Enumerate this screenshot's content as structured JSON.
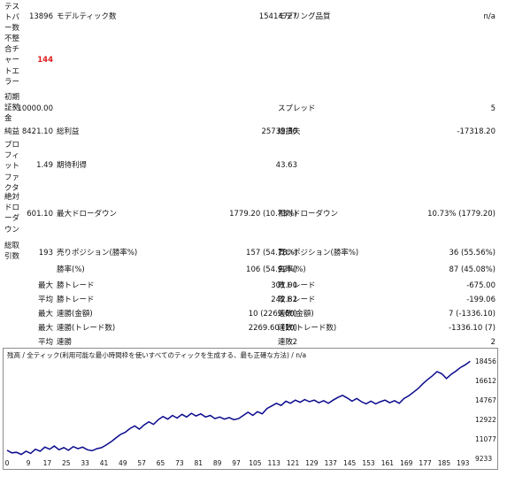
{
  "stats": {
    "test_bars": {
      "label": "テストバー数",
      "value": "13896"
    },
    "model_ticks": {
      "label": "モデルティック数",
      "value": "15414727"
    },
    "model_quality": {
      "label": "モデリング品質",
      "value": "n/a"
    },
    "mismatch_errors": {
      "label": "不整合チャートエラー",
      "value": "144"
    },
    "initial_deposit": {
      "label": "初期証拠金",
      "value": "10000.00"
    },
    "spread": {
      "label": "スプレッド",
      "value": "5"
    },
    "net_profit": {
      "label": "純益",
      "value": "8421.10"
    },
    "gross_profit": {
      "label": "総利益",
      "value": "25739.30"
    },
    "gross_loss": {
      "label": "総損失",
      "value": "-17318.20"
    },
    "profit_factor": {
      "label": "プロフィットファクタ",
      "value": "1.49"
    },
    "expected_payoff": {
      "label": "期待利得",
      "value": "43.63"
    },
    "absolute_drawdown": {
      "label": "絶対ドローダウン",
      "value": "601.10"
    },
    "maximal_drawdown": {
      "label": "最大ドローダウン",
      "value": "1779.20 (10.73%)"
    },
    "relative_drawdown": {
      "label": "相対ドローダウン",
      "value": "10.73% (1779.20)"
    },
    "total_trades": {
      "label": "総取引数",
      "value": "193"
    },
    "short_positions": {
      "label": "売りポジション(勝率%)",
      "value": "157 (54.78%)"
    },
    "long_positions": {
      "label": "買いポジション(勝率%)",
      "value": "36 (55.56%)"
    },
    "win_rate": {
      "label": "勝率(%)",
      "value": "106 (54.92%)"
    },
    "loss_rate": {
      "label": "負率(%)",
      "value": "87 (45.08%)"
    },
    "largest": {
      "prefix": "最大",
      "win_label": "勝トレード",
      "win_value": "301.00",
      "loss_label": "敗トレード",
      "loss_value": "-675.00"
    },
    "average": {
      "prefix": "平均",
      "win_label": "勝トレード",
      "win_value": "242.82",
      "loss_label": "敗トレード",
      "loss_value": "-199.06"
    },
    "max_consec_money": {
      "prefix": "最大",
      "win_label": "連勝(金額)",
      "win_value": "10 (2269.60)",
      "loss_label": "連敗(金額)",
      "loss_value": "7 (-1336.10)"
    },
    "max_consec_trades": {
      "prefix": "最大",
      "win_label": "連勝(トレード数)",
      "win_value": "2269.60 (10)",
      "loss_label": "連敗(トレード数)",
      "loss_value": "-1336.10 (7)"
    },
    "avg_consec": {
      "prefix": "平均",
      "win_label": "連勝",
      "win_value": "2",
      "loss_label": "連敗",
      "loss_value": "2"
    }
  },
  "chart_data": {
    "type": "line",
    "title": "残高 / 全ティック(利用可能な最小時間枠を使いすべてのティックを生成する、最も正確な方法) / n/a",
    "x_ticks": [
      0,
      9,
      17,
      25,
      33,
      41,
      49,
      57,
      65,
      73,
      81,
      89,
      97,
      105,
      113,
      121,
      129,
      137,
      145,
      153,
      161,
      169,
      177,
      185,
      193
    ],
    "y_ticks": [
      18456,
      16612,
      14767,
      12922,
      11077,
      9233
    ],
    "ylim": [
      9233,
      18456
    ],
    "xlim": [
      0,
      197
    ],
    "line_color": "#0a0a8c",
    "points": [
      [
        0,
        10000
      ],
      [
        2,
        9750
      ],
      [
        4,
        9800
      ],
      [
        6,
        9600
      ],
      [
        8,
        9900
      ],
      [
        10,
        9700
      ],
      [
        12,
        10100
      ],
      [
        14,
        9900
      ],
      [
        16,
        10300
      ],
      [
        18,
        10100
      ],
      [
        20,
        10400
      ],
      [
        22,
        10050
      ],
      [
        24,
        10250
      ],
      [
        26,
        10000
      ],
      [
        28,
        10350
      ],
      [
        30,
        10150
      ],
      [
        32,
        10300
      ],
      [
        34,
        10050
      ],
      [
        36,
        9950
      ],
      [
        38,
        10150
      ],
      [
        40,
        10250
      ],
      [
        42,
        10500
      ],
      [
        44,
        10800
      ],
      [
        46,
        11150
      ],
      [
        48,
        11500
      ],
      [
        50,
        11700
      ],
      [
        52,
        12050
      ],
      [
        54,
        12300
      ],
      [
        56,
        12000
      ],
      [
        58,
        12400
      ],
      [
        60,
        12700
      ],
      [
        62,
        12450
      ],
      [
        64,
        12900
      ],
      [
        66,
        13200
      ],
      [
        68,
        12950
      ],
      [
        70,
        13300
      ],
      [
        72,
        13050
      ],
      [
        74,
        13400
      ],
      [
        76,
        13150
      ],
      [
        78,
        13500
      ],
      [
        80,
        13250
      ],
      [
        82,
        13450
      ],
      [
        84,
        13150
      ],
      [
        86,
        13300
      ],
      [
        88,
        13000
      ],
      [
        90,
        13150
      ],
      [
        92,
        12950
      ],
      [
        94,
        13100
      ],
      [
        96,
        12900
      ],
      [
        98,
        13000
      ],
      [
        100,
        13300
      ],
      [
        102,
        13600
      ],
      [
        104,
        13300
      ],
      [
        106,
        13650
      ],
      [
        108,
        13450
      ],
      [
        110,
        13950
      ],
      [
        112,
        14200
      ],
      [
        114,
        14450
      ],
      [
        116,
        14250
      ],
      [
        118,
        14650
      ],
      [
        120,
        14450
      ],
      [
        122,
        14750
      ],
      [
        124,
        14550
      ],
      [
        126,
        14800
      ],
      [
        128,
        14600
      ],
      [
        130,
        14750
      ],
      [
        132,
        14500
      ],
      [
        134,
        14700
      ],
      [
        136,
        14450
      ],
      [
        138,
        14750
      ],
      [
        140,
        15000
      ],
      [
        142,
        15200
      ],
      [
        144,
        14950
      ],
      [
        146,
        14650
      ],
      [
        148,
        14900
      ],
      [
        150,
        14600
      ],
      [
        152,
        14400
      ],
      [
        154,
        14650
      ],
      [
        156,
        14400
      ],
      [
        158,
        14600
      ],
      [
        160,
        14750
      ],
      [
        162,
        14500
      ],
      [
        164,
        14700
      ],
      [
        166,
        14450
      ],
      [
        168,
        14900
      ],
      [
        170,
        15150
      ],
      [
        172,
        15500
      ],
      [
        174,
        15850
      ],
      [
        176,
        16300
      ],
      [
        178,
        16700
      ],
      [
        180,
        17050
      ],
      [
        182,
        17450
      ],
      [
        184,
        17250
      ],
      [
        186,
        16800
      ],
      [
        188,
        17200
      ],
      [
        190,
        17500
      ],
      [
        192,
        17850
      ],
      [
        194,
        18100
      ],
      [
        196,
        18421
      ]
    ]
  }
}
